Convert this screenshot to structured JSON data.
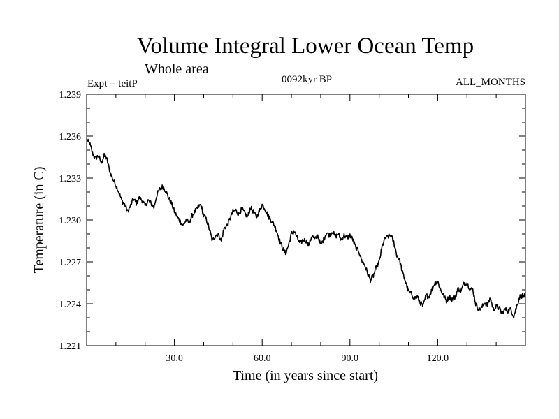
{
  "chart_data": {
    "type": "line",
    "title": "Volume Integral Lower Ocean Temp",
    "subtitle": "Whole area",
    "left_label": "Expt = teitP",
    "center_label": "0092kyr BP",
    "right_label": "ALL_MONTHS",
    "xlabel": "Time (in years since start)",
    "ylabel": "Temperature (in C)",
    "xlim": [
      0,
      150
    ],
    "ylim": [
      1.221,
      1.239
    ],
    "x_ticks": [
      30,
      60,
      90,
      120
    ],
    "x_tick_labels": [
      "30.0",
      "60.0",
      "90.0",
      "120.0"
    ],
    "y_ticks": [
      1.221,
      1.224,
      1.227,
      1.23,
      1.233,
      1.236,
      1.239
    ],
    "y_tick_labels": [
      "1.221",
      "1.224",
      "1.227",
      "1.230",
      "1.233",
      "1.236",
      "1.239"
    ],
    "grid": false,
    "series": [
      {
        "name": "Temperature",
        "color": "#000000",
        "x": [
          0,
          1,
          2,
          3,
          4,
          5,
          6,
          7,
          8,
          9,
          10,
          11,
          12,
          13,
          14,
          15,
          16,
          17,
          18,
          19,
          20,
          21,
          22,
          23,
          24,
          25,
          26,
          27,
          28,
          29,
          30,
          31,
          32,
          33,
          34,
          35,
          36,
          37,
          38,
          39,
          40,
          41,
          42,
          43,
          44,
          45,
          46,
          47,
          48,
          49,
          50,
          51,
          52,
          53,
          54,
          55,
          56,
          57,
          58,
          59,
          60,
          61,
          62,
          63,
          64,
          65,
          66,
          67,
          68,
          69,
          70,
          71,
          72,
          73,
          74,
          75,
          76,
          77,
          78,
          79,
          80,
          81,
          82,
          83,
          84,
          85,
          86,
          87,
          88,
          89,
          90,
          91,
          92,
          93,
          94,
          95,
          96,
          97,
          98,
          99,
          100,
          101,
          102,
          103,
          104,
          105,
          106,
          107,
          108,
          109,
          110,
          111,
          112,
          113,
          114,
          115,
          116,
          117,
          118,
          119,
          120,
          121,
          122,
          123,
          124,
          125,
          126,
          127,
          128,
          129,
          130,
          131,
          132,
          133,
          134,
          135,
          136,
          137,
          138,
          139,
          140,
          141,
          142,
          143,
          144,
          145,
          146,
          147,
          148,
          149,
          150
        ],
        "y": [
          1.2357,
          1.2355,
          1.2348,
          1.2344,
          1.2346,
          1.2341,
          1.2346,
          1.2343,
          1.2334,
          1.2329,
          1.2325,
          1.232,
          1.2314,
          1.2311,
          1.2306,
          1.231,
          1.2315,
          1.2312,
          1.2316,
          1.2314,
          1.231,
          1.2314,
          1.2312,
          1.2309,
          1.2318,
          1.2322,
          1.2324,
          1.2321,
          1.2316,
          1.2312,
          1.2306,
          1.2302,
          1.2299,
          1.2296,
          1.23,
          1.2298,
          1.2303,
          1.2306,
          1.2309,
          1.2311,
          1.2303,
          1.23,
          1.2293,
          1.2285,
          1.2289,
          1.229,
          1.2285,
          1.2294,
          1.2296,
          1.2301,
          1.2306,
          1.2307,
          1.2304,
          1.2308,
          1.2305,
          1.2302,
          1.2309,
          1.2306,
          1.2302,
          1.2306,
          1.2311,
          1.2308,
          1.2303,
          1.23,
          1.2297,
          1.2292,
          1.2285,
          1.228,
          1.2276,
          1.2282,
          1.229,
          1.2292,
          1.2287,
          1.2283,
          1.2286,
          1.2285,
          1.2282,
          1.2289,
          1.2286,
          1.2289,
          1.2282,
          1.2286,
          1.2291,
          1.2289,
          1.2292,
          1.2288,
          1.229,
          1.2286,
          1.2289,
          1.2287,
          1.2289,
          1.2286,
          1.228,
          1.2278,
          1.2271,
          1.2268,
          1.2262,
          1.2257,
          1.226,
          1.2266,
          1.227,
          1.2281,
          1.2287,
          1.2288,
          1.2289,
          1.2284,
          1.2275,
          1.2271,
          1.2262,
          1.2256,
          1.2249,
          1.2247,
          1.2244,
          1.2245,
          1.2241,
          1.2238,
          1.2246,
          1.2245,
          1.225,
          1.2255,
          1.2256,
          1.225,
          1.2246,
          1.2242,
          1.2245,
          1.2243,
          1.2245,
          1.2251,
          1.2249,
          1.2255,
          1.2255,
          1.2251,
          1.225,
          1.224,
          1.2236,
          1.2237,
          1.2241,
          1.2239,
          1.2244,
          1.2236,
          1.2238,
          1.2237,
          1.2233,
          1.2236,
          1.2235,
          1.2236,
          1.2231,
          1.2238,
          1.2245,
          1.2246,
          1.2245
        ]
      }
    ]
  }
}
